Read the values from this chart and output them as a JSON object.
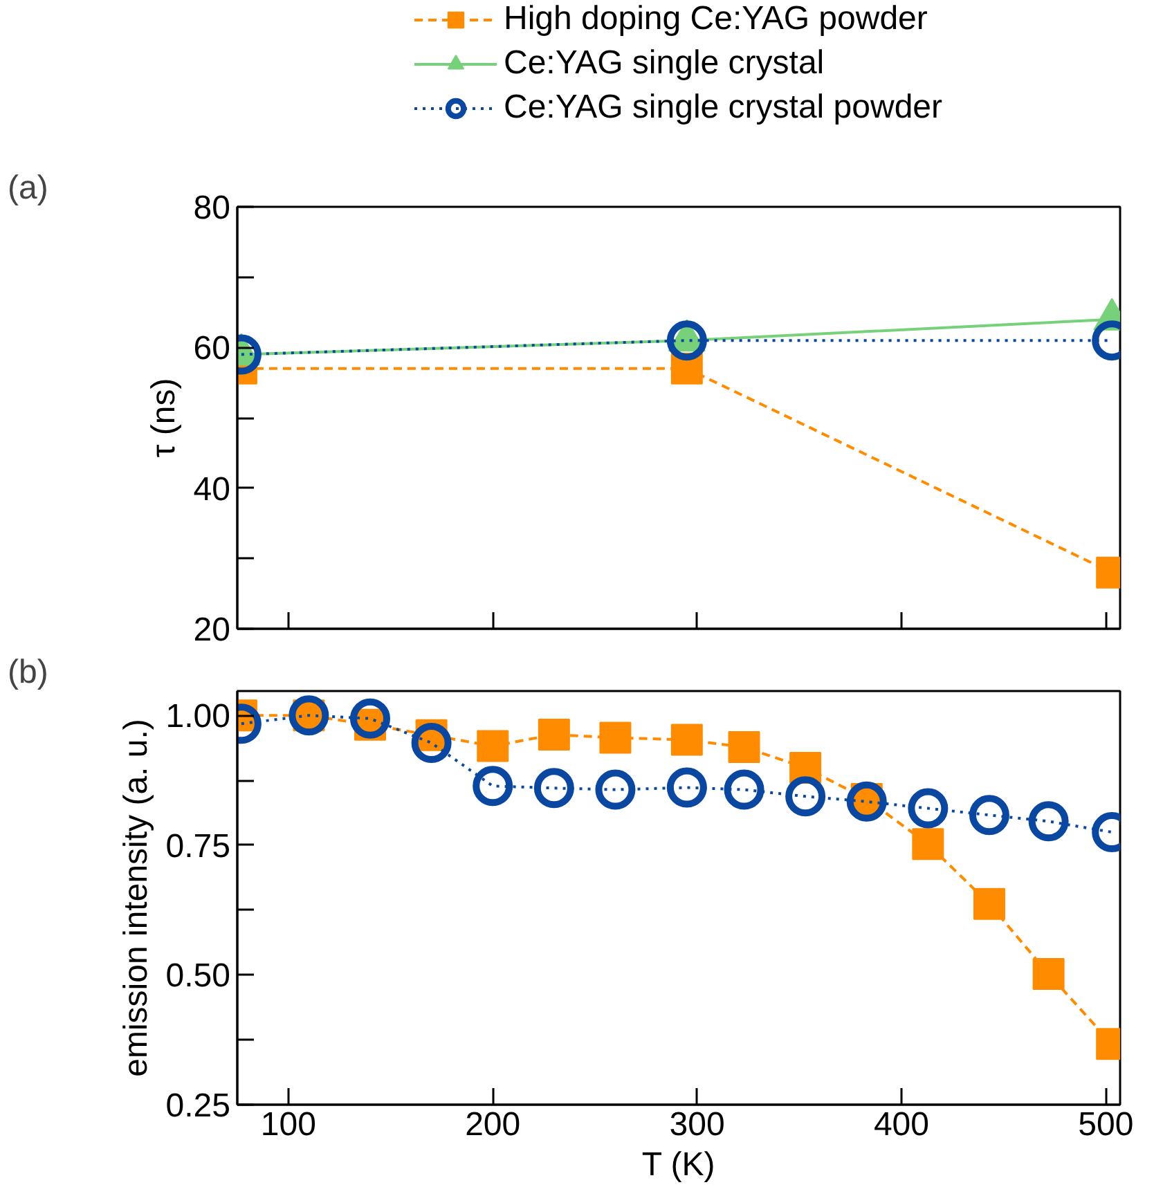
{
  "chart_data": [
    {
      "type": "line",
      "ylabel": "τ (ns)",
      "annotations": [
        "(a)"
      ],
      "legend": "top",
      "tick_labels": "y",
      "grid": false,
      "xlim": [
        75,
        507
      ],
      "xticks": [
        {
          "value": 100,
          "label": null
        },
        {
          "value": 200,
          "label": null
        },
        {
          "value": 300,
          "label": null
        },
        {
          "value": 400,
          "label": null
        },
        {
          "value": 500,
          "label": null
        }
      ],
      "ylim": [
        20,
        80
      ],
      "yticks": [
        20,
        {
          "value": 30,
          "label": null
        },
        40,
        {
          "value": 50,
          "label": null
        },
        60,
        {
          "value": 70,
          "label": null
        },
        80
      ],
      "series": [
        {
          "name": "High doping Ce:YAG powder",
          "color": "#ff8c00",
          "marker": "square",
          "line_style": "dashed",
          "x": [
            77,
            295,
            503
          ],
          "values": [
            57,
            57,
            28
          ]
        },
        {
          "name": "Ce:YAG single crystal",
          "color": "#77d17a",
          "marker": "triangle",
          "line_style": "solid",
          "x": [
            77,
            295,
            503
          ],
          "values": [
            59,
            61,
            64
          ]
        },
        {
          "name": "Ce:YAG single crystal powder",
          "color": "#0a47a0",
          "marker": "circle",
          "line_style": "dotted",
          "x": [
            77,
            295,
            503
          ],
          "values": [
            59,
            61,
            61
          ]
        }
      ]
    },
    {
      "type": "line",
      "xlabel": "T (K)",
      "ylabel": "emission intensity (a. u.)",
      "annotations": [
        "(b)"
      ],
      "legend": false,
      "grid": false,
      "xlim": [
        75,
        507
      ],
      "xticks": [
        100,
        200,
        300,
        400,
        500
      ],
      "ylim": [
        0.25,
        1.047
      ],
      "yticks": [
        0.25,
        {
          "value": 0.375,
          "label": null
        },
        {
          "value": 0.5,
          "label": "0.50"
        },
        {
          "value": 0.625,
          "label": null
        },
        0.75,
        {
          "value": 0.875,
          "label": null
        },
        {
          "value": 1,
          "label": "1.00"
        }
      ],
      "series": [
        {
          "color": "#ff8c00",
          "marker": "square",
          "line_style": "dashed",
          "x": [
            77,
            110,
            140,
            170,
            200,
            230,
            260,
            295,
            323,
            353,
            383,
            413,
            443,
            472,
            503
          ],
          "values": [
            1.0,
            1.0,
            0.982,
            0.962,
            0.941,
            0.963,
            0.957,
            0.953,
            0.939,
            0.899,
            0.839,
            0.752,
            0.637,
            0.502,
            0.367
          ]
        },
        {
          "color": "#0a47a0",
          "marker": "circle",
          "line_style": "dotted",
          "x": [
            77,
            110,
            140,
            170,
            200,
            230,
            260,
            295,
            323,
            353,
            383,
            413,
            443,
            472,
            503
          ],
          "values": [
            0.984,
            1.0,
            0.994,
            0.947,
            0.864,
            0.86,
            0.857,
            0.861,
            0.857,
            0.844,
            0.834,
            0.821,
            0.808,
            0.796,
            0.775
          ]
        }
      ]
    }
  ]
}
